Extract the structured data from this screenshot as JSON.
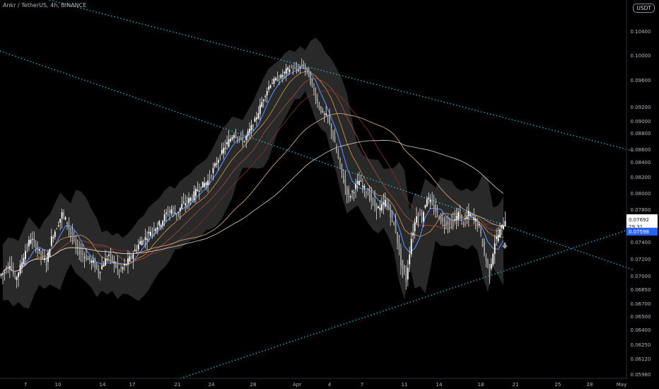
{
  "title": "Ankr / TetherUS, 4h, BINANCE",
  "currency_badge": "USDT",
  "chart_data": {
    "type": "candlestick",
    "instrument": "Ankr / TetherUS",
    "interval": "4h",
    "exchange": "BINANCE",
    "y_ticks": [
      "0.10400",
      "0.10000",
      "0.09600",
      "0.09200",
      "0.09000",
      "0.08800",
      "0.08600",
      "0.08400",
      "0.08200",
      "0.08000",
      "0.07800",
      "0.07600",
      "0.07400",
      "0.07200",
      "0.07000",
      "0.06850",
      "0.06700",
      "0.06500",
      "0.06400",
      "0.06250",
      "0.06120",
      "0.05980"
    ],
    "x_ticks": [
      "7",
      "10",
      "14",
      "17",
      "21",
      "24",
      "28",
      "Apr",
      "4",
      "7",
      "11",
      "14",
      "18",
      "21",
      "25",
      "28",
      "May"
    ],
    "price_label": {
      "price": "0.07692",
      "countdown": "29:31"
    },
    "second_label": "0.07598",
    "close_series": [
      0.0705,
      0.0715,
      0.0695,
      0.071,
      0.073,
      0.0745,
      0.0735,
      0.0725,
      0.0715,
      0.0745,
      0.076,
      0.0775,
      0.0765,
      0.0745,
      0.073,
      0.0725,
      0.072,
      0.0715,
      0.0705,
      0.0715,
      0.0725,
      0.0715,
      0.0705,
      0.0712,
      0.072,
      0.073,
      0.074,
      0.0745,
      0.0755,
      0.076,
      0.0765,
      0.0775,
      0.078,
      0.0775,
      0.0785,
      0.079,
      0.0795,
      0.0805,
      0.081,
      0.0815,
      0.083,
      0.0845,
      0.086,
      0.087,
      0.088,
      0.0875,
      0.087,
      0.0885,
      0.09,
      0.092,
      0.094,
      0.0955,
      0.096,
      0.0965,
      0.0975,
      0.098,
      0.0975,
      0.0985,
      0.0975,
      0.095,
      0.0925,
      0.091,
      0.0905,
      0.0875,
      0.0845,
      0.0815,
      0.0795,
      0.0805,
      0.0815,
      0.0805,
      0.0795,
      0.0785,
      0.078,
      0.079,
      0.0775,
      0.0755,
      0.0715,
      0.0695,
      0.0745,
      0.0775,
      0.077,
      0.0795,
      0.0785,
      0.0775,
      0.0765,
      0.0765,
      0.0765,
      0.0775,
      0.0765,
      0.0775,
      0.077,
      0.076,
      0.0725,
      0.0705,
      0.074,
      0.0755,
      0.0769
    ],
    "trendlines": [
      {
        "style": "dotted",
        "points": [
          {
            "x": "early Mar",
            "y": 0.1058
          },
          {
            "x": "end",
            "y": 0.0858
          }
        ]
      },
      {
        "style": "dotted",
        "points": [
          {
            "x": "early Mar",
            "y": 0.1002
          },
          {
            "x": "end",
            "y": 0.0721
          }
        ]
      },
      {
        "style": "dotted",
        "points": [
          {
            "x": "23 Mar",
            "y": 0.0598
          },
          {
            "x": "end",
            "y": 0.0755
          }
        ]
      }
    ],
    "overlays": [
      "moving averages",
      "bollinger-style band (shaded)"
    ],
    "grid": false
  }
}
